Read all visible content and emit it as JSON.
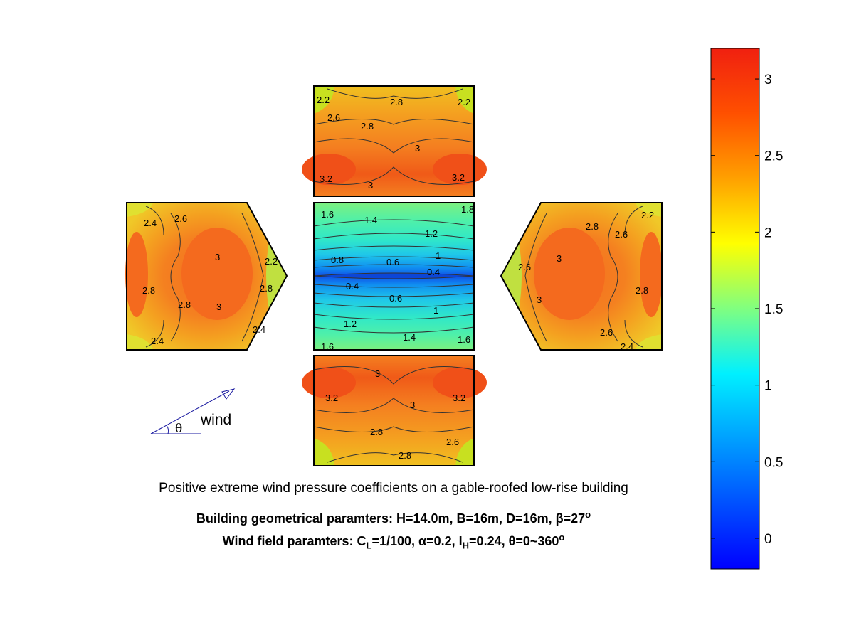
{
  "chart_data": {
    "type": "heatmap",
    "title": "Positive extreme wind pressure coefficients on a gable-roofed low-rise building",
    "subtitle_building": {
      "prefix": "Building geometrical paramters: H=14.0m, B=16m, D=16m, β=27",
      "sup": "o"
    },
    "subtitle_wind": {
      "p1": "Wind field paramters: C",
      "s1": "L",
      "p2": "=1/100, α=0.2, I",
      "s2": "H",
      "p3": "=0.24, θ=0~360",
      "sup": "o"
    },
    "colorbar": {
      "range": [
        -0.2,
        3.2
      ],
      "ticks": [
        "0",
        "0.5",
        "1",
        "1.5",
        "2",
        "2.5",
        "3"
      ],
      "tick_values": [
        0,
        0.5,
        1,
        1.5,
        2,
        2.5,
        3
      ],
      "colormap": "jet"
    },
    "panels": [
      {
        "name": "wall-top",
        "contour_labels": [
          "2.2",
          "2.6",
          "2.8",
          "2.8",
          "3",
          "3.2",
          "3",
          "3.2",
          "2.2"
        ]
      },
      {
        "name": "gable-left",
        "contour_labels": [
          "2.4",
          "2.6",
          "3",
          "2.8",
          "2.8",
          "3",
          "2.8",
          "2.4",
          "2.4",
          "2.2"
        ]
      },
      {
        "name": "roof-center",
        "contour_labels": [
          "1.6",
          "1.4",
          "1.2",
          "1",
          "0.8",
          "0.6",
          "0.4",
          "0.4",
          "0.6",
          "1",
          "1.2",
          "1.4",
          "1.6",
          "1.6",
          "1.8"
        ]
      },
      {
        "name": "gable-right",
        "contour_labels": [
          "2.2",
          "2.6",
          "2.8",
          "3",
          "2.6",
          "2.8",
          "3",
          "2.6",
          "2.4"
        ]
      },
      {
        "name": "wall-bottom",
        "contour_labels": [
          "3",
          "3.2",
          "3",
          "3.2",
          "2.8",
          "2.6",
          "2.8"
        ]
      }
    ],
    "wind_indicator": {
      "label": "wind",
      "angle_symbol": "θ"
    }
  },
  "colors": {
    "arrow": "#1a1aa0"
  }
}
